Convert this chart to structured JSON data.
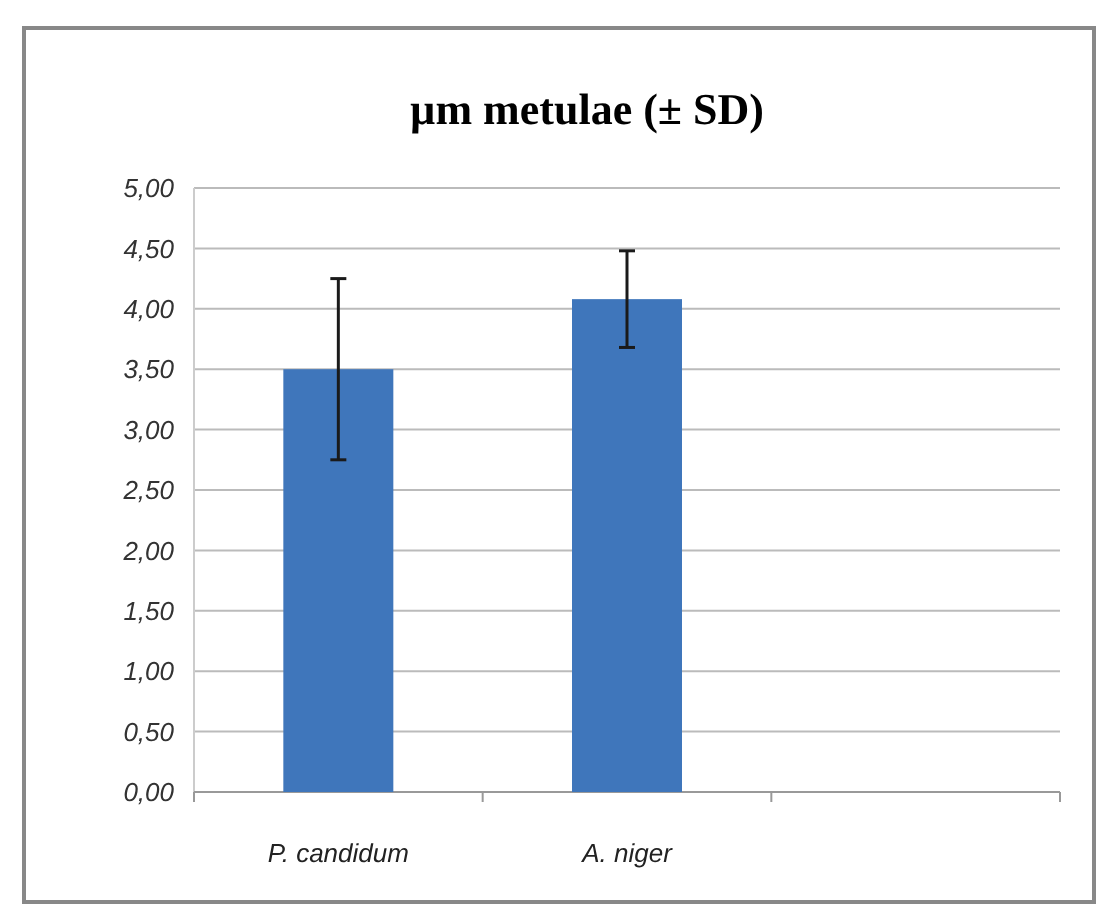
{
  "chart_data": {
    "type": "bar",
    "title": "µm metulae (± SD)",
    "categories": [
      "P. candidum",
      "A. niger",
      null
    ],
    "values": [
      3.5,
      4.08,
      null
    ],
    "errors": [
      0.75,
      0.4,
      null
    ],
    "color": "#3f76bb",
    "ylim": [
      0,
      5
    ],
    "yticks": [
      {
        "value": 0,
        "label": "0,00"
      },
      {
        "value": 0.5,
        "label": "0,50"
      },
      {
        "value": 1,
        "label": "1,00"
      },
      {
        "value": 1.5,
        "label": "1,50"
      },
      {
        "value": 2,
        "label": "2,00"
      },
      {
        "value": 2.5,
        "label": "2,50"
      },
      {
        "value": 3,
        "label": "3,00"
      },
      {
        "value": 3.5,
        "label": "3,50"
      },
      {
        "value": 4,
        "label": "4,00"
      },
      {
        "value": 4.5,
        "label": "4,50"
      },
      {
        "value": 5,
        "label": "5,00"
      }
    ],
    "grid": "y"
  }
}
